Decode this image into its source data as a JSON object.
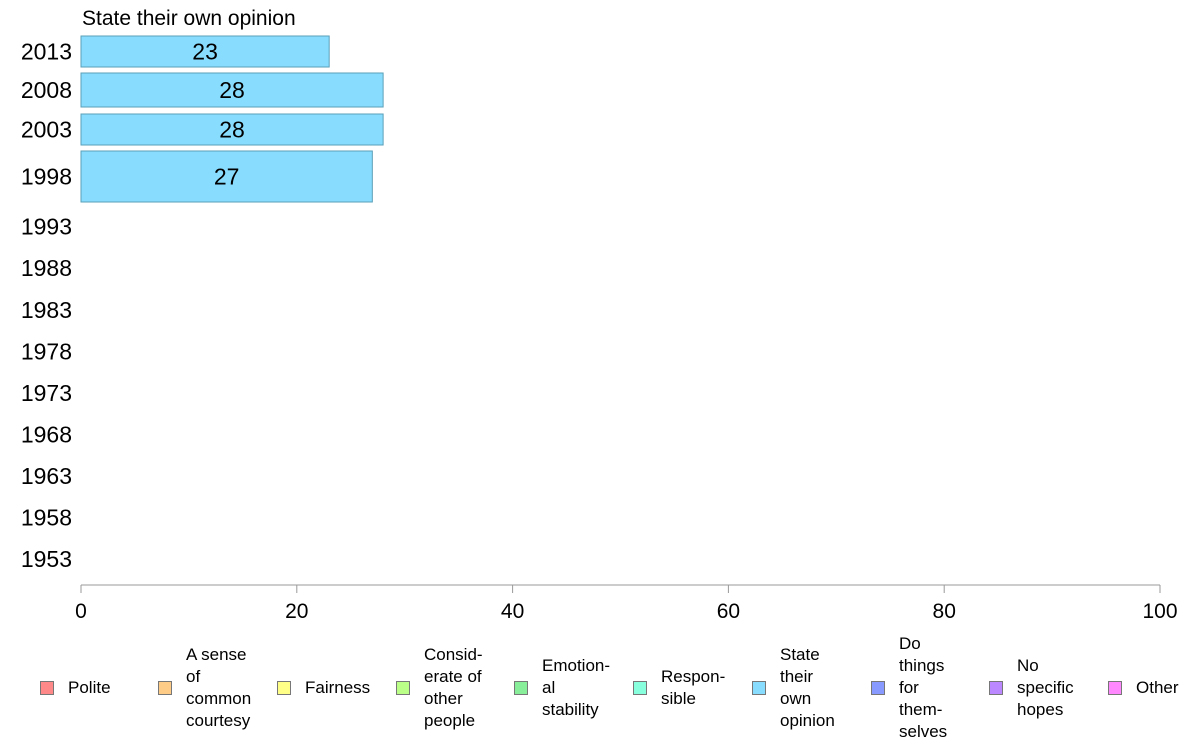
{
  "chart_data": {
    "type": "bar",
    "orientation": "horizontal",
    "panel_title": "State their own opinion",
    "categories": [
      "2013",
      "2008",
      "2003",
      "1998",
      "1993",
      "1988",
      "1983",
      "1978",
      "1973",
      "1968",
      "1963",
      "1958",
      "1953"
    ],
    "series": [
      {
        "name": "State their own opinion",
        "values": [
          23,
          28,
          28,
          27,
          null,
          null,
          null,
          null,
          null,
          null,
          null,
          null,
          null
        ]
      }
    ],
    "data_labels": [
      "23",
      "28",
      "28",
      "27"
    ],
    "xlim": [
      0,
      100
    ],
    "xticks": [
      "0",
      "20",
      "40",
      "60",
      "80",
      "100"
    ],
    "bar_color": "#88ddff",
    "bar_border_color": "#5a9fb8",
    "axis_color": "#999999",
    "legend": [
      {
        "label": "Polite",
        "color": "#ff8888"
      },
      {
        "label": "A sense\nof\ncommon\ncourtesy",
        "color": "#ffcc88"
      },
      {
        "label": "Fairness",
        "color": "#ffff88"
      },
      {
        "label": "Consid-\nerate of\nother\npeople",
        "color": "#bbff88"
      },
      {
        "label": "Emotion-\nal\nstability",
        "color": "#88ee99"
      },
      {
        "label": "Respon-\nsible",
        "color": "#88ffdd"
      },
      {
        "label": "State\ntheir\nown\nopinion",
        "color": "#88ddff"
      },
      {
        "label": "Do\nthings\nfor\nthem-\nselves",
        "color": "#8899ff"
      },
      {
        "label": "No\nspecific\nhopes",
        "color": "#bb88ff"
      },
      {
        "label": "Other",
        "color": "#ff88ff"
      }
    ],
    "legend_position": "bottom"
  }
}
